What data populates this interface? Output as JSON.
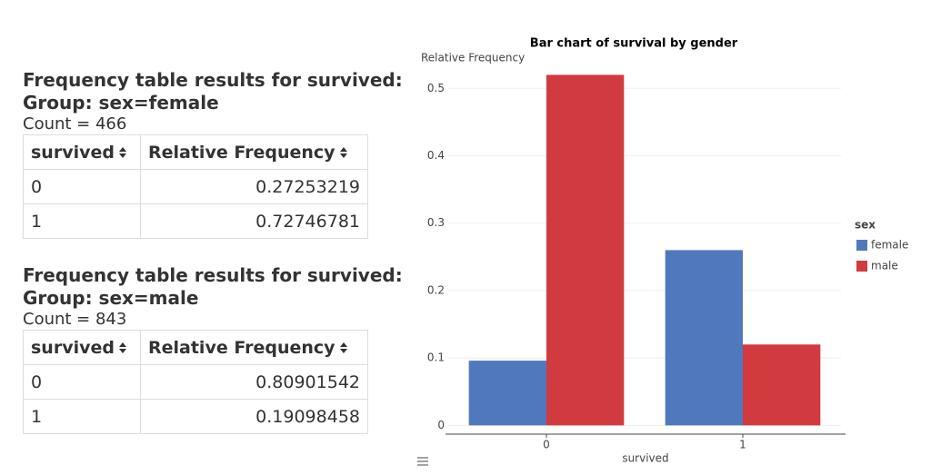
{
  "tables": [
    {
      "title": "Frequency table results for survived:",
      "group": "Group: sex=female",
      "count": "Count = 466",
      "columns": [
        "survived",
        "Relative Frequency"
      ],
      "rows": [
        [
          "0",
          "0.27253219"
        ],
        [
          "1",
          "0.72746781"
        ]
      ]
    },
    {
      "title": "Frequency table results for survived:",
      "group": "Group: sex=male",
      "count": "Count = 843",
      "columns": [
        "survived",
        "Relative Frequency"
      ],
      "rows": [
        [
          "0",
          "0.80901542"
        ],
        [
          "1",
          "0.19098458"
        ]
      ]
    }
  ],
  "chart_data": {
    "type": "bar",
    "title": "Bar chart of survival by gender",
    "y_label": "Relative Frequency",
    "x_label": "survived",
    "legend_title": "sex",
    "categories": [
      "0",
      "1"
    ],
    "series": [
      {
        "name": "female",
        "color": "#5079bd",
        "values": [
          0.096,
          0.26
        ]
      },
      {
        "name": "male",
        "color": "#d13a3f",
        "values": [
          0.52,
          0.12
        ]
      }
    ],
    "ylim": [
      -0.013,
      0.53
    ],
    "yticks": [
      0,
      0.1,
      0.2,
      0.3,
      0.4,
      0.5
    ],
    "grid": true,
    "legend": "right"
  }
}
